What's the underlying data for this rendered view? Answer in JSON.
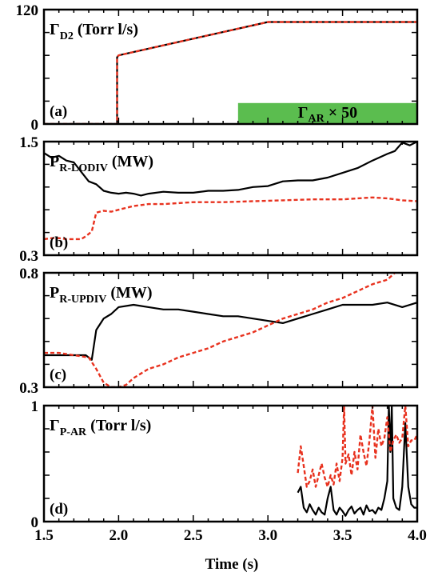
{
  "figure": {
    "xlabel": "Time (s)",
    "x_ticks": [
      "1.5",
      "2.0",
      "2.5",
      "3.0",
      "3.5",
      "4.0"
    ],
    "colors": {
      "solid": "#000000",
      "dashed": "#e8321f",
      "green_band": "#5bbd4f"
    }
  },
  "chart_data": [
    {
      "panel": "a",
      "type": "line",
      "panel_tag": "(a)",
      "title_main": "Γ",
      "title_sub": "D2",
      "title_unit": " (Torr l/s)",
      "xlim": [
        1.5,
        4.0
      ],
      "ylim": [
        0,
        120
      ],
      "y_ticks": [
        "120",
        "0"
      ],
      "band": {
        "label_main": "Γ",
        "label_sub": "AR",
        "label_tail": " × 50",
        "x_start": 2.8,
        "x_end": 4.0,
        "y_top": 22
      },
      "series": [
        {
          "style": "solid",
          "x": [
            1.5,
            1.99,
            1.99,
            2.0,
            3.0,
            4.0
          ],
          "y": [
            0,
            0,
            70,
            72,
            107,
            107
          ]
        },
        {
          "style": "dashed",
          "x": [
            1.5,
            1.99,
            1.99,
            2.0,
            3.0,
            4.0
          ],
          "y": [
            0,
            0,
            70,
            72,
            107,
            107
          ]
        }
      ]
    },
    {
      "panel": "b",
      "type": "line",
      "panel_tag": "(b)",
      "title_main": "P",
      "title_sub": "R-LODIV",
      "title_unit": " (MW)",
      "xlim": [
        1.5,
        4.0
      ],
      "ylim": [
        0.3,
        1.5
      ],
      "y_ticks": [
        "1.5",
        "0.3"
      ],
      "series": [
        {
          "style": "solid",
          "x": [
            1.5,
            1.55,
            1.6,
            1.65,
            1.7,
            1.75,
            1.8,
            1.85,
            1.9,
            1.95,
            2.0,
            2.05,
            2.1,
            2.15,
            2.2,
            2.3,
            2.4,
            2.5,
            2.6,
            2.7,
            2.8,
            2.9,
            3.0,
            3.1,
            3.2,
            3.3,
            3.4,
            3.5,
            3.6,
            3.7,
            3.8,
            3.85,
            3.9,
            3.95,
            4.0
          ],
          "y": [
            1.38,
            1.33,
            1.35,
            1.3,
            1.28,
            1.18,
            1.08,
            1.05,
            0.98,
            0.96,
            0.95,
            0.96,
            0.95,
            0.93,
            0.95,
            0.97,
            0.96,
            0.96,
            0.98,
            0.98,
            0.99,
            1.02,
            1.03,
            1.08,
            1.09,
            1.09,
            1.12,
            1.17,
            1.22,
            1.3,
            1.37,
            1.4,
            1.49,
            1.46,
            1.5
          ]
        },
        {
          "style": "dashed",
          "x": [
            1.5,
            1.55,
            1.6,
            1.65,
            1.7,
            1.75,
            1.78,
            1.82,
            1.85,
            1.9,
            1.95,
            2.0,
            2.1,
            2.2,
            2.3,
            2.5,
            2.7,
            2.9,
            3.1,
            3.3,
            3.5,
            3.7,
            3.8,
            3.9,
            4.0
          ],
          "y": [
            0.47,
            0.48,
            0.48,
            0.47,
            0.47,
            0.47,
            0.5,
            0.55,
            0.75,
            0.77,
            0.76,
            0.78,
            0.82,
            0.84,
            0.84,
            0.86,
            0.86,
            0.87,
            0.88,
            0.89,
            0.89,
            0.91,
            0.9,
            0.88,
            0.87
          ]
        }
      ]
    },
    {
      "panel": "c",
      "type": "line",
      "panel_tag": "(c)",
      "title_main": "P",
      "title_sub": "R-UPDIV",
      "title_unit": " (MW)",
      "xlim": [
        1.5,
        4.0
      ],
      "ylim": [
        0.3,
        0.8
      ],
      "y_ticks": [
        "0.8",
        "0.3"
      ],
      "series": [
        {
          "style": "solid",
          "x": [
            1.5,
            1.6,
            1.7,
            1.78,
            1.82,
            1.85,
            1.9,
            1.95,
            2.0,
            2.1,
            2.2,
            2.3,
            2.4,
            2.5,
            2.6,
            2.7,
            2.8,
            2.9,
            3.0,
            3.1,
            3.2,
            3.3,
            3.4,
            3.5,
            3.6,
            3.7,
            3.8,
            3.9,
            4.0
          ],
          "y": [
            0.44,
            0.44,
            0.44,
            0.44,
            0.42,
            0.55,
            0.6,
            0.62,
            0.65,
            0.66,
            0.65,
            0.64,
            0.64,
            0.63,
            0.62,
            0.61,
            0.61,
            0.6,
            0.59,
            0.58,
            0.6,
            0.62,
            0.64,
            0.66,
            0.66,
            0.66,
            0.67,
            0.65,
            0.67
          ]
        },
        {
          "style": "dashed",
          "x": [
            1.5,
            1.6,
            1.7,
            1.8,
            1.85,
            1.9,
            1.95,
            2.0,
            2.05,
            2.1,
            2.2,
            2.3,
            2.4,
            2.5,
            2.6,
            2.7,
            2.8,
            2.9,
            3.0,
            3.1,
            3.2,
            3.3,
            3.4,
            3.5,
            3.6,
            3.7,
            3.8,
            3.85
          ],
          "y": [
            0.45,
            0.45,
            0.44,
            0.43,
            0.38,
            0.32,
            0.3,
            0.3,
            0.31,
            0.34,
            0.38,
            0.4,
            0.43,
            0.45,
            0.47,
            0.5,
            0.52,
            0.54,
            0.57,
            0.6,
            0.62,
            0.64,
            0.67,
            0.69,
            0.72,
            0.75,
            0.77,
            0.8
          ]
        }
      ]
    },
    {
      "panel": "d",
      "type": "line",
      "panel_tag": "(d)",
      "title_main": "Γ",
      "title_sub": "P-AR",
      "title_unit": " (Torr l/s)",
      "xlim": [
        1.5,
        4.0
      ],
      "ylim": [
        0,
        1
      ],
      "y_ticks": [
        "1",
        "0"
      ],
      "series": [
        {
          "style": "solid",
          "x": [
            3.2,
            3.22,
            3.24,
            3.26,
            3.28,
            3.3,
            3.32,
            3.34,
            3.36,
            3.38,
            3.4,
            3.42,
            3.44,
            3.46,
            3.48,
            3.5,
            3.52,
            3.54,
            3.56,
            3.58,
            3.6,
            3.62,
            3.64,
            3.66,
            3.68,
            3.7,
            3.72,
            3.74,
            3.76,
            3.78,
            3.8,
            3.81,
            3.82,
            3.83,
            3.84,
            3.86,
            3.88,
            3.9,
            3.92,
            3.94,
            3.96,
            3.98,
            4.0
          ],
          "y": [
            0.25,
            0.3,
            0.12,
            0.08,
            0.15,
            0.1,
            0.06,
            0.12,
            0.08,
            0.06,
            0.2,
            0.3,
            0.1,
            0.06,
            0.12,
            0.09,
            0.05,
            0.1,
            0.13,
            0.07,
            0.1,
            0.12,
            0.06,
            0.14,
            0.09,
            0.1,
            0.07,
            0.12,
            0.1,
            0.2,
            0.35,
            1.0,
            0.6,
            1.0,
            0.2,
            0.12,
            0.1,
            0.3,
            0.85,
            0.3,
            0.15,
            0.12,
            0.12
          ]
        },
        {
          "style": "dashed",
          "x": [
            3.2,
            3.22,
            3.24,
            3.26,
            3.28,
            3.3,
            3.32,
            3.34,
            3.36,
            3.38,
            3.4,
            3.42,
            3.44,
            3.46,
            3.48,
            3.5,
            3.51,
            3.52,
            3.54,
            3.56,
            3.58,
            3.6,
            3.62,
            3.64,
            3.66,
            3.68,
            3.7,
            3.72,
            3.74,
            3.76,
            3.78,
            3.8,
            3.82,
            3.84,
            3.86,
            3.88,
            3.9,
            3.92,
            3.94,
            3.96,
            3.98,
            4.0
          ],
          "y": [
            0.42,
            0.65,
            0.48,
            0.3,
            0.35,
            0.45,
            0.3,
            0.4,
            0.5,
            0.38,
            0.3,
            0.4,
            0.32,
            0.5,
            0.35,
            0.55,
            1.0,
            0.5,
            0.58,
            0.4,
            0.6,
            0.45,
            0.75,
            0.6,
            0.48,
            0.7,
            1.0,
            0.55,
            0.8,
            0.65,
            0.72,
            0.9,
            0.6,
            0.7,
            0.75,
            0.68,
            0.72,
            1.0,
            0.65,
            0.7,
            0.7,
            0.75
          ]
        }
      ]
    }
  ]
}
